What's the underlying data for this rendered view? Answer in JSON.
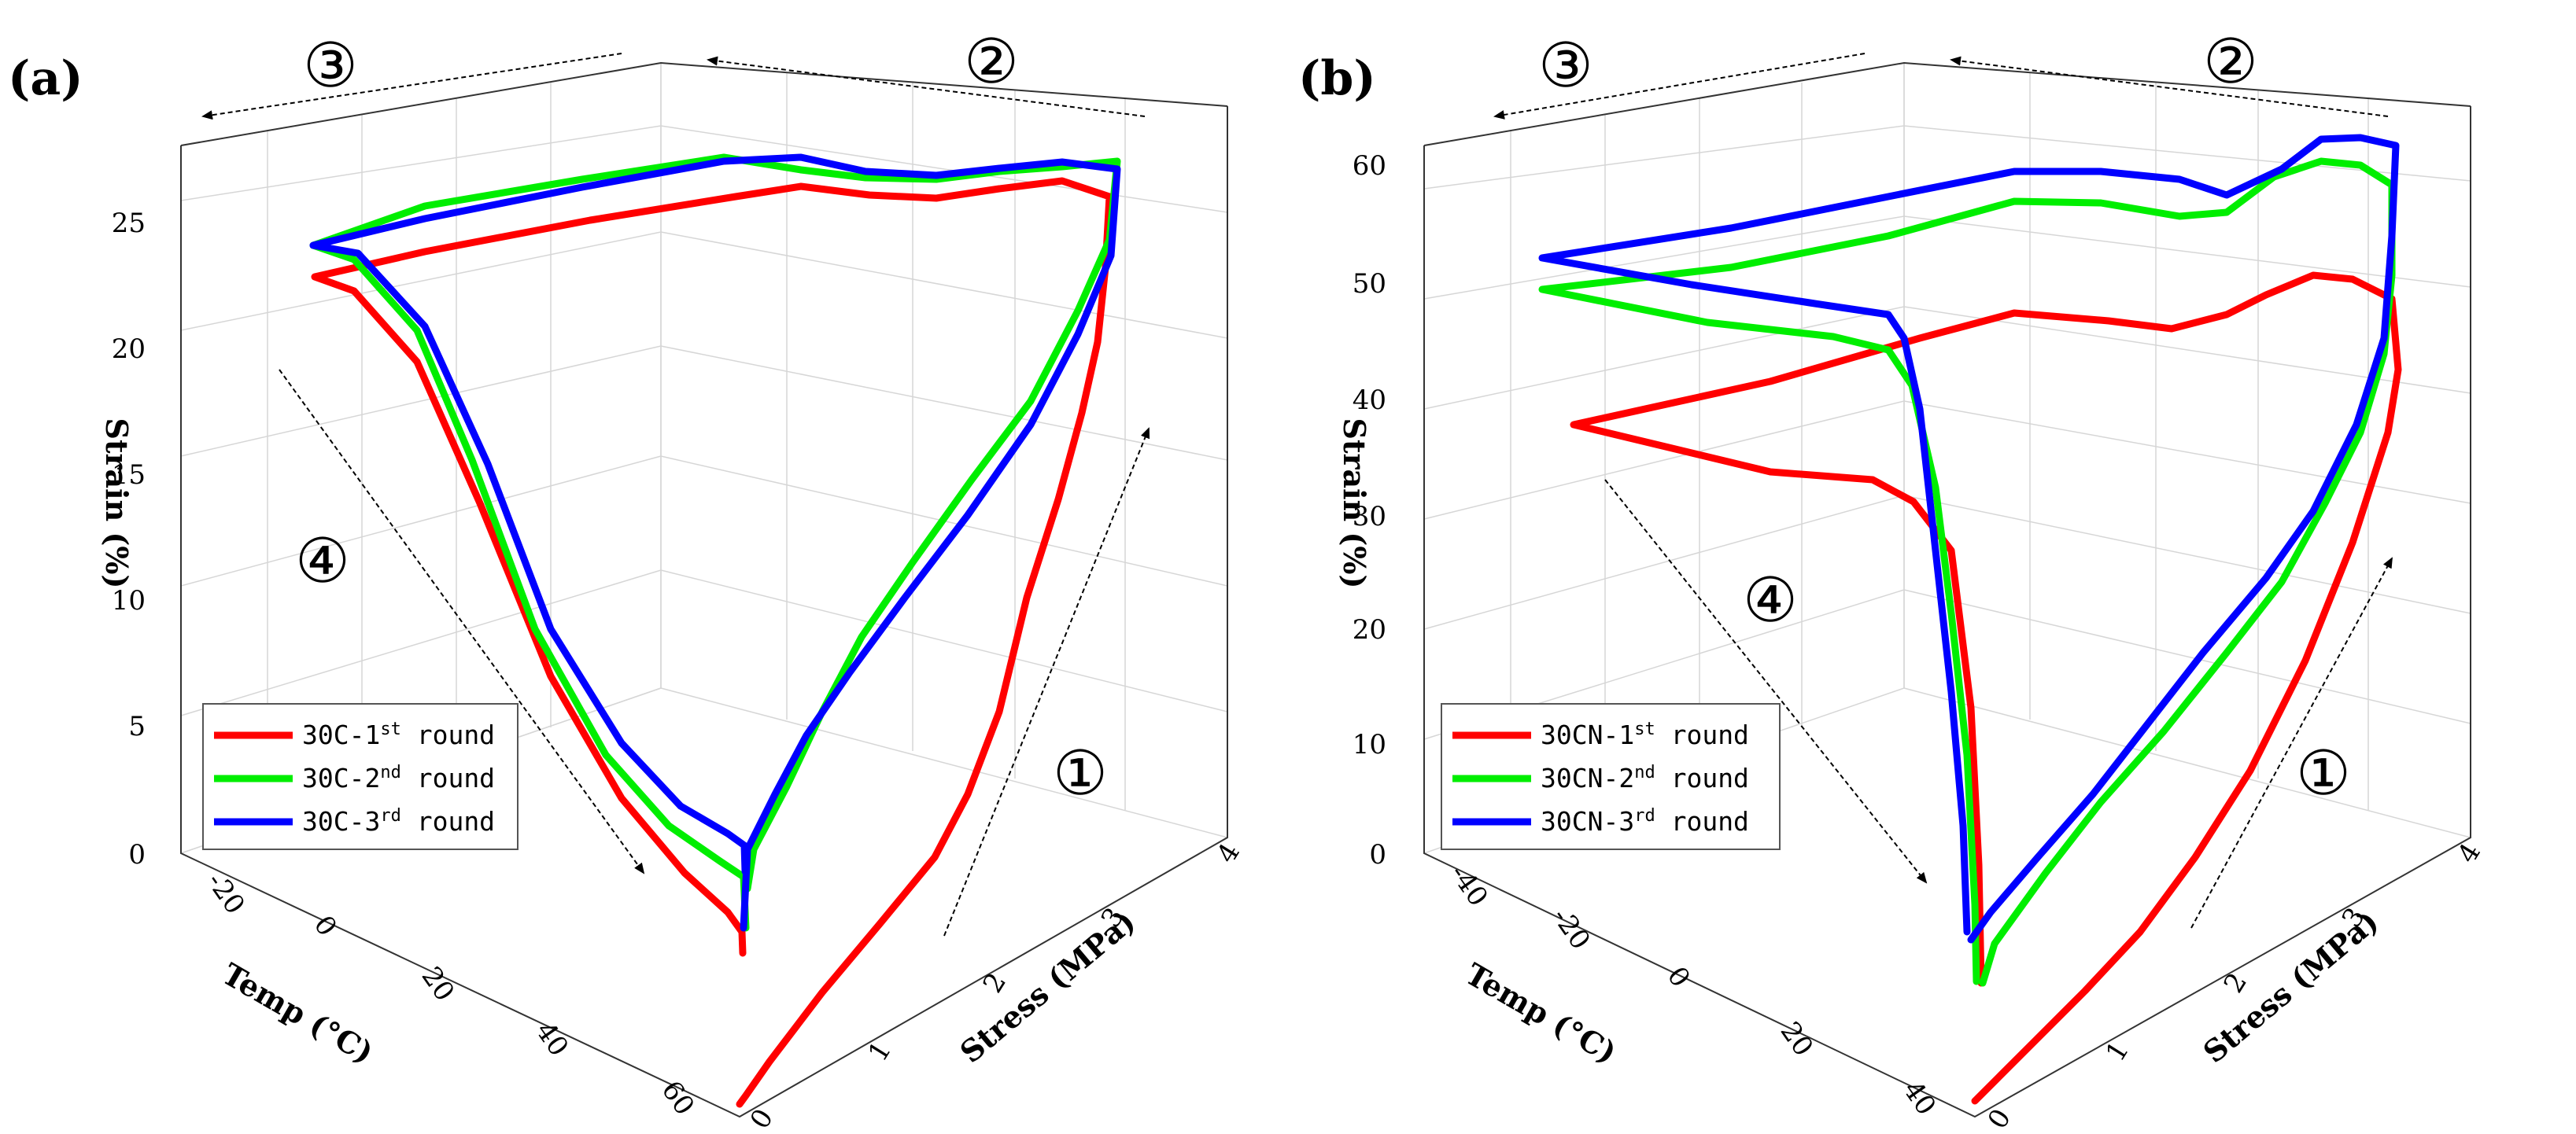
{
  "colors": {
    "round1": "#ff0000",
    "round2": "#00ee00",
    "round3": "#0000ff"
  },
  "chart_data": [
    {
      "type": "line",
      "panel_label": "(a)",
      "xlabel": "Temp (°C)",
      "ylabel": "Stress (MPa)",
      "zlabel": "Strain (%)",
      "temp_ticks": [
        "-20",
        "0",
        "20",
        "40",
        "60"
      ],
      "stress_ticks": [
        "0",
        "1",
        "2",
        "3",
        "4"
      ],
      "strain_ticks": [
        "0",
        "5",
        "10",
        "15",
        "20",
        "25"
      ],
      "steps": [
        "①",
        "②",
        "③",
        "④"
      ],
      "legend_position": "bottom-left",
      "series": [
        {
          "name": "30C-1st round",
          "base": "30C-1",
          "sup": "st",
          "suffix": " round",
          "color": "#ff0000",
          "width": 9,
          "points": [
            [
              940,
              1404
            ],
            [
              948,
              1393
            ],
            [
              978,
              1350
            ],
            [
              1045,
              1262
            ],
            [
              1118,
              1175
            ],
            [
              1188,
              1090
            ],
            [
              1230,
              1010
            ],
            [
              1270,
              905
            ],
            [
              1305,
              760
            ],
            [
              1345,
              635
            ],
            [
              1375,
              525
            ],
            [
              1395,
              435
            ],
            [
              1405,
              340
            ],
            [
              1410,
              250
            ],
            [
              1350,
              230
            ],
            [
              1270,
              240
            ],
            [
              1190,
              252
            ],
            [
              1105,
              248
            ],
            [
              1018,
              237
            ],
            [
              935,
              250
            ],
            [
              750,
              280
            ],
            [
              540,
              320
            ],
            [
              400,
              352
            ],
            [
              450,
              370
            ],
            [
              530,
              460
            ],
            [
              610,
              640
            ],
            [
              700,
              860
            ],
            [
              790,
              1015
            ],
            [
              870,
              1110
            ],
            [
              925,
              1160
            ],
            [
              943,
              1185
            ],
            [
              944,
              1212
            ]
          ]
        },
        {
          "name": "30C-2nd round",
          "base": "30C-2",
          "sup": "nd",
          "suffix": " round",
          "color": "#00ee00",
          "width": 9,
          "points": [
            [
              950,
              1130
            ],
            [
              958,
              1080
            ],
            [
              1000,
              1000
            ],
            [
              1045,
              905
            ],
            [
              1095,
              810
            ],
            [
              1160,
              715
            ],
            [
              1235,
              610
            ],
            [
              1310,
              510
            ],
            [
              1370,
              395
            ],
            [
              1410,
              305
            ],
            [
              1420,
              205
            ],
            [
              1350,
              212
            ],
            [
              1270,
              218
            ],
            [
              1190,
              228
            ],
            [
              1100,
              226
            ],
            [
              1018,
              216
            ],
            [
              920,
              200
            ],
            [
              740,
              228
            ],
            [
              540,
              262
            ],
            [
              398,
              312
            ],
            [
              450,
              330
            ],
            [
              530,
              420
            ],
            [
              600,
              585
            ],
            [
              680,
              800
            ],
            [
              770,
              960
            ],
            [
              850,
              1050
            ],
            [
              915,
              1095
            ],
            [
              945,
              1115
            ],
            [
              948,
              1180
            ]
          ]
        },
        {
          "name": "30C-3rd round",
          "base": "30C-3",
          "sup": "rd",
          "suffix": " round",
          "color": "#0000ff",
          "width": 9,
          "points": [
            [
              945,
              1180
            ],
            [
              950,
              1080
            ],
            [
              985,
              1010
            ],
            [
              1025,
              935
            ],
            [
              1080,
              855
            ],
            [
              1150,
              760
            ],
            [
              1230,
              655
            ],
            [
              1310,
              540
            ],
            [
              1370,
              425
            ],
            [
              1412,
              325
            ],
            [
              1420,
              215
            ],
            [
              1350,
              206
            ],
            [
              1270,
              214
            ],
            [
              1190,
              223
            ],
            [
              1100,
              218
            ],
            [
              1018,
              200
            ],
            [
              920,
              205
            ],
            [
              740,
              238
            ],
            [
              540,
              278
            ],
            [
              398,
              312
            ],
            [
              455,
              322
            ],
            [
              540,
              415
            ],
            [
              620,
              590
            ],
            [
              700,
              800
            ],
            [
              790,
              945
            ],
            [
              865,
              1025
            ],
            [
              925,
              1060
            ],
            [
              946,
              1075
            ],
            [
              947,
              1108
            ]
          ]
        }
      ]
    },
    {
      "type": "line",
      "panel_label": "(b)",
      "xlabel": "Temp (°C)",
      "ylabel": "Stress (MPa)",
      "zlabel": "Strain (%)",
      "temp_ticks": [
        "-40",
        "-20",
        "0",
        "20",
        "40"
      ],
      "stress_ticks": [
        "0",
        "1",
        "2",
        "3",
        "4"
      ],
      "strain_ticks": [
        "0",
        "10",
        "20",
        "30",
        "40",
        "50",
        "60"
      ],
      "steps": [
        "①",
        "②",
        "③",
        "④"
      ],
      "legend_position": "bottom-left",
      "series": [
        {
          "name": "30CN-1st round",
          "base": "30CN-1",
          "sup": "st",
          "suffix": " round",
          "color": "#ff0000",
          "width": 9,
          "points": [
            [
              2510,
              1400
            ],
            [
              2540,
              1370
            ],
            [
              2585,
              1325
            ],
            [
              2650,
              1260
            ],
            [
              2720,
              1185
            ],
            [
              2790,
              1090
            ],
            [
              2860,
              980
            ],
            [
              2930,
              840
            ],
            [
              2990,
              690
            ],
            [
              3035,
              550
            ],
            [
              3048,
              470
            ],
            [
              3040,
              380
            ],
            [
              2990,
              355
            ],
            [
              2940,
              350
            ],
            [
              2880,
              375
            ],
            [
              2830,
              400
            ],
            [
              2760,
              418
            ],
            [
              2680,
              408
            ],
            [
              2560,
              398
            ],
            [
              2440,
              430
            ],
            [
              2250,
              485
            ],
            [
              2000,
              540
            ],
            [
              2250,
              600
            ],
            [
              2380,
              610
            ],
            [
              2432,
              638
            ],
            [
              2480,
              700
            ],
            [
              2505,
              900
            ],
            [
              2515,
              1100
            ],
            [
              2518,
              1250
            ]
          ]
        },
        {
          "name": "30CN-2nd round",
          "base": "30CN-2",
          "sup": "nd",
          "suffix": " round",
          "color": "#00ee00",
          "width": 9,
          "points": [
            [
              2520,
              1250
            ],
            [
              2535,
              1200
            ],
            [
              2600,
              1110
            ],
            [
              2670,
              1020
            ],
            [
              2750,
              930
            ],
            [
              2830,
              830
            ],
            [
              2900,
              740
            ],
            [
              2955,
              640
            ],
            [
              3000,
              550
            ],
            [
              3030,
              450
            ],
            [
              3040,
              350
            ],
            [
              3040,
              235
            ],
            [
              3000,
              210
            ],
            [
              2950,
              205
            ],
            [
              2890,
              225
            ],
            [
              2830,
              270
            ],
            [
              2770,
              275
            ],
            [
              2670,
              258
            ],
            [
              2560,
              256
            ],
            [
              2400,
              300
            ],
            [
              2200,
              340
            ],
            [
              1960,
              368
            ],
            [
              2170,
              410
            ],
            [
              2330,
              428
            ],
            [
              2400,
              445
            ],
            [
              2430,
              490
            ],
            [
              2460,
              620
            ],
            [
              2480,
              780
            ],
            [
              2500,
              960
            ],
            [
              2510,
              1150
            ],
            [
              2512,
              1248
            ]
          ]
        },
        {
          "name": "30CN-3rd round",
          "base": "30CN-3",
          "sup": "rd",
          "suffix": " round",
          "color": "#0000ff",
          "width": 9,
          "points": [
            [
              2505,
              1195
            ],
            [
              2530,
              1160
            ],
            [
              2590,
              1090
            ],
            [
              2660,
              1010
            ],
            [
              2730,
              920
            ],
            [
              2800,
              830
            ],
            [
              2880,
              735
            ],
            [
              2940,
              650
            ],
            [
              2995,
              540
            ],
            [
              3030,
              430
            ],
            [
              3040,
              300
            ],
            [
              3045,
              185
            ],
            [
              3000,
              175
            ],
            [
              2950,
              177
            ],
            [
              2900,
              215
            ],
            [
              2830,
              248
            ],
            [
              2770,
              228
            ],
            [
              2670,
              218
            ],
            [
              2560,
              218
            ],
            [
              2400,
              250
            ],
            [
              2200,
              290
            ],
            [
              1960,
              328
            ],
            [
              2150,
              362
            ],
            [
              2300,
              385
            ],
            [
              2400,
              400
            ],
            [
              2420,
              430
            ],
            [
              2440,
              520
            ],
            [
              2460,
              700
            ],
            [
              2480,
              880
            ],
            [
              2495,
              1050
            ],
            [
              2500,
              1185
            ]
          ]
        }
      ]
    }
  ]
}
